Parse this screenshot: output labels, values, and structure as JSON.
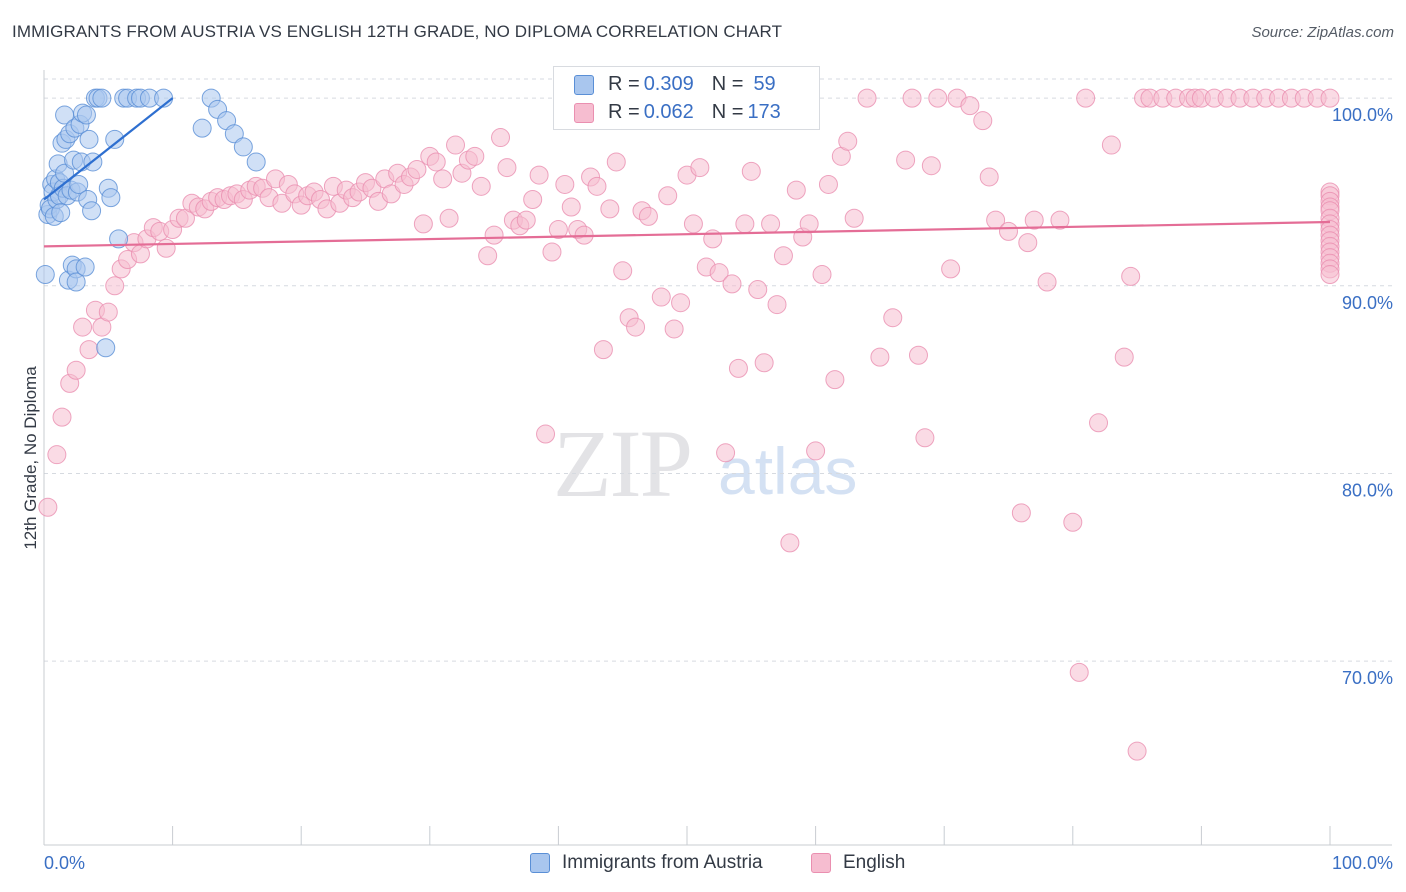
{
  "title": "IMMIGRANTS FROM AUSTRIA VS ENGLISH 12TH GRADE, NO DIPLOMA CORRELATION CHART",
  "source": "Source: ZipAtlas.com",
  "watermark": {
    "zip": "ZIP",
    "atlas": "atlas"
  },
  "colors": {
    "blue_fill": "#a9c6ee",
    "blue_stroke": "#5a8fd6",
    "blue_line": "#2e6fd0",
    "pink_fill": "#f6bdd0",
    "pink_stroke": "#ea8fb0",
    "pink_line": "#e46d96",
    "axis_label": "#3a6fc4",
    "grid": "#d6dae0"
  },
  "stats": {
    "blue": {
      "r_label": "R = ",
      "r_value": "0.309",
      "n_label": "N = ",
      "n_value": "59"
    },
    "pink": {
      "r_label": "R = ",
      "r_value": "0.062",
      "n_label": "N = ",
      "n_value": "173"
    }
  },
  "legend": {
    "blue": "Immigrants from Austria",
    "pink": "English"
  },
  "chart_data": {
    "type": "scatter",
    "title": "IMMIGRANTS FROM AUSTRIA VS ENGLISH 12TH GRADE, NO DIPLOMA CORRELATION CHART",
    "xlabel": "",
    "ylabel": "12th Grade, No Diploma",
    "xlim": [
      0,
      100
    ],
    "ylim": [
      60.2,
      101.5
    ],
    "x_tick_labels": [
      "0.0%",
      "100.0%"
    ],
    "y_ticks": [
      70,
      80,
      90,
      100
    ],
    "y_tick_labels": [
      "70.0%",
      "80.0%",
      "90.0%",
      "100.0%"
    ],
    "grid": true,
    "series": [
      {
        "name": "Immigrants from Austria",
        "color": "blue",
        "trend": [
          [
            0,
            94.6
          ],
          [
            10,
            100.0
          ]
        ],
        "points": [
          [
            0.1,
            90.6
          ],
          [
            0.3,
            93.8
          ],
          [
            0.4,
            94.3
          ],
          [
            0.5,
            94.1
          ],
          [
            0.6,
            95.4
          ],
          [
            0.7,
            95.0
          ],
          [
            0.8,
            93.7
          ],
          [
            0.9,
            95.7
          ],
          [
            1.0,
            94.6
          ],
          [
            1.1,
            96.5
          ],
          [
            1.2,
            95.5
          ],
          [
            1.2,
            94.8
          ],
          [
            1.3,
            93.9
          ],
          [
            1.4,
            97.6
          ],
          [
            1.5,
            95.2
          ],
          [
            1.6,
            96.0
          ],
          [
            1.6,
            99.1
          ],
          [
            1.7,
            97.8
          ],
          [
            1.8,
            94.8
          ],
          [
            1.9,
            90.3
          ],
          [
            2.0,
            98.1
          ],
          [
            2.1,
            95.1
          ],
          [
            2.2,
            91.1
          ],
          [
            2.3,
            96.7
          ],
          [
            2.4,
            98.4
          ],
          [
            2.5,
            90.9
          ],
          [
            2.5,
            90.2
          ],
          [
            2.6,
            95.0
          ],
          [
            2.7,
            95.4
          ],
          [
            2.8,
            98.6
          ],
          [
            2.9,
            96.6
          ],
          [
            3.0,
            99.2
          ],
          [
            3.2,
            91.0
          ],
          [
            3.3,
            99.1
          ],
          [
            3.4,
            94.6
          ],
          [
            3.5,
            97.8
          ],
          [
            3.7,
            94.0
          ],
          [
            3.8,
            96.6
          ],
          [
            4.0,
            100.0
          ],
          [
            4.2,
            100.0
          ],
          [
            4.5,
            100.0
          ],
          [
            4.8,
            86.7
          ],
          [
            5.0,
            95.2
          ],
          [
            5.2,
            94.7
          ],
          [
            5.5,
            97.8
          ],
          [
            5.8,
            92.5
          ],
          [
            6.2,
            100.0
          ],
          [
            6.5,
            100.0
          ],
          [
            7.2,
            100.0
          ],
          [
            7.5,
            100.0
          ],
          [
            8.2,
            100.0
          ],
          [
            9.3,
            100.0
          ],
          [
            12.3,
            98.4
          ],
          [
            13.0,
            100.0
          ],
          [
            13.5,
            99.4
          ],
          [
            14.2,
            98.8
          ],
          [
            14.8,
            98.1
          ],
          [
            15.5,
            97.4
          ],
          [
            16.5,
            96.6
          ]
        ]
      },
      {
        "name": "English",
        "color": "pink",
        "trend": [
          [
            0,
            92.1
          ],
          [
            100,
            93.4
          ]
        ],
        "points": [
          [
            0.3,
            78.2
          ],
          [
            1.0,
            81.0
          ],
          [
            1.4,
            83.0
          ],
          [
            2.0,
            84.8
          ],
          [
            2.5,
            85.5
          ],
          [
            3.0,
            87.8
          ],
          [
            3.5,
            86.6
          ],
          [
            4.0,
            88.7
          ],
          [
            4.5,
            87.8
          ],
          [
            5.0,
            88.6
          ],
          [
            5.5,
            90.0
          ],
          [
            6.0,
            90.9
          ],
          [
            6.5,
            91.4
          ],
          [
            7.0,
            92.3
          ],
          [
            7.5,
            91.7
          ],
          [
            8.0,
            92.5
          ],
          [
            8.5,
            93.1
          ],
          [
            9.0,
            92.9
          ],
          [
            9.5,
            92.0
          ],
          [
            10.0,
            93.0
          ],
          [
            10.5,
            93.6
          ],
          [
            11.0,
            93.6
          ],
          [
            11.5,
            94.4
          ],
          [
            12.0,
            94.2
          ],
          [
            12.5,
            94.1
          ],
          [
            13.0,
            94.5
          ],
          [
            13.5,
            94.7
          ],
          [
            14.0,
            94.6
          ],
          [
            14.5,
            94.8
          ],
          [
            15.0,
            94.9
          ],
          [
            15.5,
            94.6
          ],
          [
            16.0,
            95.1
          ],
          [
            16.5,
            95.3
          ],
          [
            17.0,
            95.2
          ],
          [
            17.5,
            94.7
          ],
          [
            18.0,
            95.7
          ],
          [
            18.5,
            94.4
          ],
          [
            19.0,
            95.4
          ],
          [
            19.5,
            94.9
          ],
          [
            20.0,
            94.3
          ],
          [
            20.5,
            94.8
          ],
          [
            21.0,
            95.0
          ],
          [
            21.5,
            94.6
          ],
          [
            22.0,
            94.1
          ],
          [
            22.5,
            95.3
          ],
          [
            23.0,
            94.4
          ],
          [
            23.5,
            95.1
          ],
          [
            24.0,
            94.7
          ],
          [
            24.5,
            95.0
          ],
          [
            25.0,
            95.5
          ],
          [
            25.5,
            95.2
          ],
          [
            26.0,
            94.5
          ],
          [
            26.5,
            95.7
          ],
          [
            27.0,
            94.9
          ],
          [
            27.5,
            96.0
          ],
          [
            28.0,
            95.4
          ],
          [
            28.5,
            95.8
          ],
          [
            29.0,
            96.2
          ],
          [
            29.5,
            93.3
          ],
          [
            30.0,
            96.9
          ],
          [
            30.5,
            96.6
          ],
          [
            31.0,
            95.7
          ],
          [
            31.5,
            93.6
          ],
          [
            32.0,
            97.5
          ],
          [
            32.5,
            96.0
          ],
          [
            33.0,
            96.7
          ],
          [
            33.5,
            96.9
          ],
          [
            34.0,
            95.3
          ],
          [
            34.5,
            91.6
          ],
          [
            35.0,
            92.7
          ],
          [
            35.5,
            97.9
          ],
          [
            36.0,
            96.3
          ],
          [
            36.5,
            93.5
          ],
          [
            37.0,
            93.2
          ],
          [
            37.5,
            93.5
          ],
          [
            38.0,
            94.6
          ],
          [
            38.5,
            95.9
          ],
          [
            39.0,
            82.1
          ],
          [
            39.5,
            91.8
          ],
          [
            40.0,
            93.0
          ],
          [
            40.5,
            95.4
          ],
          [
            41.0,
            94.2
          ],
          [
            41.5,
            93.0
          ],
          [
            42.0,
            92.7
          ],
          [
            42.5,
            95.8
          ],
          [
            43.0,
            95.3
          ],
          [
            43.5,
            86.6
          ],
          [
            44.0,
            94.1
          ],
          [
            44.5,
            96.6
          ],
          [
            45.0,
            90.8
          ],
          [
            45.5,
            88.3
          ],
          [
            46.0,
            87.8
          ],
          [
            46.5,
            94.0
          ],
          [
            47.0,
            93.7
          ],
          [
            48.0,
            89.4
          ],
          [
            48.5,
            94.8
          ],
          [
            49.0,
            87.7
          ],
          [
            49.5,
            89.1
          ],
          [
            50.0,
            95.9
          ],
          [
            50.5,
            93.3
          ],
          [
            51.0,
            96.3
          ],
          [
            51.5,
            91.0
          ],
          [
            52.0,
            92.5
          ],
          [
            52.5,
            90.7
          ],
          [
            53.0,
            81.1
          ],
          [
            53.5,
            90.1
          ],
          [
            54.0,
            85.6
          ],
          [
            54.5,
            93.3
          ],
          [
            55.0,
            96.1
          ],
          [
            55.5,
            89.8
          ],
          [
            56.0,
            85.9
          ],
          [
            56.5,
            93.3
          ],
          [
            57.0,
            89.0
          ],
          [
            57.5,
            91.6
          ],
          [
            58.0,
            76.3
          ],
          [
            58.5,
            95.1
          ],
          [
            59.0,
            92.6
          ],
          [
            59.5,
            93.3
          ],
          [
            60.0,
            81.2
          ],
          [
            60.5,
            90.6
          ],
          [
            61.0,
            95.4
          ],
          [
            61.5,
            85.0
          ],
          [
            62.0,
            96.9
          ],
          [
            62.5,
            97.7
          ],
          [
            63.0,
            93.6
          ],
          [
            64.0,
            100.0
          ],
          [
            65.0,
            86.2
          ],
          [
            66.0,
            88.3
          ],
          [
            67.0,
            96.7
          ],
          [
            67.5,
            100.0
          ],
          [
            68.0,
            86.3
          ],
          [
            68.5,
            81.9
          ],
          [
            69.0,
            96.4
          ],
          [
            69.5,
            100.0
          ],
          [
            70.5,
            90.9
          ],
          [
            71.0,
            100.0
          ],
          [
            72.0,
            99.6
          ],
          [
            73.0,
            98.8
          ],
          [
            73.5,
            95.8
          ],
          [
            74.0,
            93.5
          ],
          [
            75.0,
            92.9
          ],
          [
            76.0,
            77.9
          ],
          [
            76.5,
            92.3
          ],
          [
            77.0,
            93.5
          ],
          [
            78.0,
            90.2
          ],
          [
            79.0,
            93.5
          ],
          [
            80.0,
            77.4
          ],
          [
            80.5,
            69.4
          ],
          [
            81.0,
            100.0
          ],
          [
            82.0,
            82.7
          ],
          [
            83.0,
            97.5
          ],
          [
            84.0,
            86.2
          ],
          [
            84.5,
            90.5
          ],
          [
            85.0,
            65.2
          ],
          [
            85.5,
            100.0
          ],
          [
            86.0,
            100.0
          ],
          [
            87.0,
            100.0
          ],
          [
            88.0,
            100.0
          ],
          [
            89.0,
            100.0
          ],
          [
            89.5,
            100.0
          ],
          [
            90.0,
            100.0
          ],
          [
            91.0,
            100.0
          ],
          [
            92.0,
            100.0
          ],
          [
            93.0,
            100.0
          ],
          [
            94.0,
            100.0
          ],
          [
            95.0,
            100.0
          ],
          [
            96.0,
            100.0
          ],
          [
            97.0,
            100.0
          ],
          [
            98.0,
            100.0
          ],
          [
            99.0,
            100.0
          ],
          [
            100.0,
            100.0
          ],
          [
            100.0,
            95.0
          ],
          [
            100.0,
            94.8
          ],
          [
            100.0,
            94.5
          ],
          [
            100.0,
            94.2
          ],
          [
            100.0,
            94.0
          ],
          [
            100.0,
            93.6
          ],
          [
            100.0,
            93.3
          ],
          [
            100.0,
            93.0
          ],
          [
            100.0,
            92.7
          ],
          [
            100.0,
            92.4
          ],
          [
            100.0,
            92.1
          ],
          [
            100.0,
            91.8
          ],
          [
            100.0,
            91.5
          ],
          [
            100.0,
            91.2
          ],
          [
            100.0,
            90.9
          ],
          [
            100.0,
            90.6
          ]
        ]
      }
    ]
  }
}
